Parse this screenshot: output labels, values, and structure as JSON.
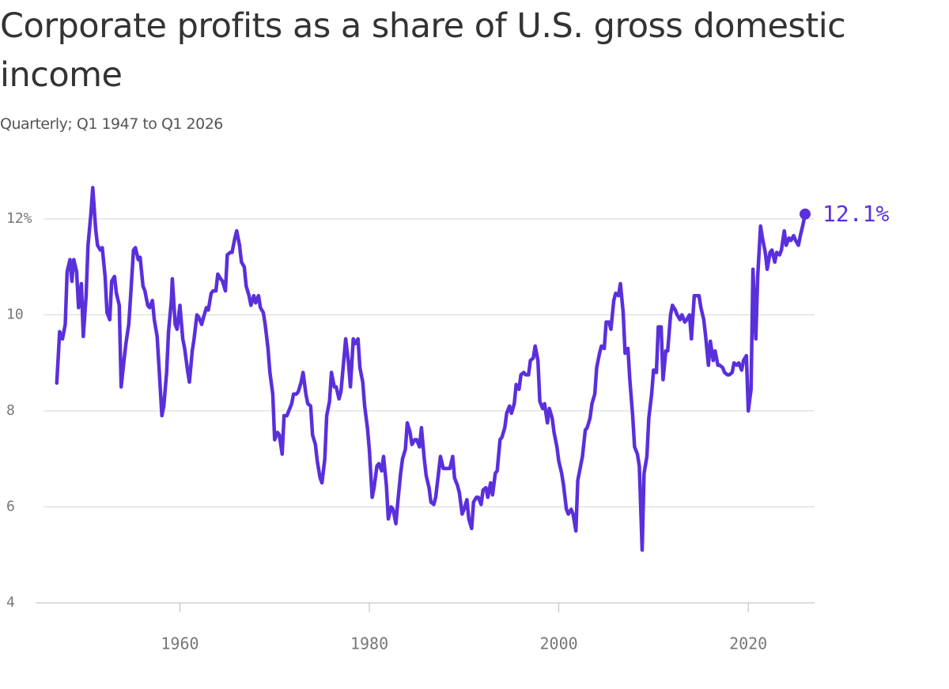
{
  "chart_data": {
    "type": "line",
    "title": "Corporate profits as a share of U.S. gross domestic income",
    "subtitle": "Quarterly; Q1 1947 to Q1 2026",
    "color": "#5a2fdc",
    "end_label": "12.1%",
    "xlim": [
      1945.6,
      2027
    ],
    "xticks": [
      1960,
      1980,
      2000,
      2020
    ],
    "ylim": [
      4,
      12.8
    ],
    "yticks": [
      4,
      6,
      8,
      10,
      {
        "value": 12,
        "label": "12%"
      }
    ],
    "grid": true,
    "x": [
      1947.0,
      1947.3,
      1947.6,
      1947.9,
      1948.1,
      1948.4,
      1948.6,
      1948.8,
      1949.1,
      1949.3,
      1949.6,
      1949.8,
      1950.1,
      1950.3,
      1950.6,
      1950.8,
      1951.1,
      1951.3,
      1951.6,
      1951.8,
      1952.1,
      1952.3,
      1952.6,
      1952.8,
      1953.1,
      1953.3,
      1953.6,
      1953.8,
      1954.1,
      1954.3,
      1954.6,
      1954.8,
      1955.1,
      1955.3,
      1955.6,
      1955.8,
      1956.1,
      1956.3,
      1956.6,
      1956.8,
      1957.1,
      1957.3,
      1957.6,
      1957.8,
      1958.1,
      1958.3,
      1958.6,
      1958.8,
      1959.1,
      1959.2,
      1959.5,
      1959.7,
      1960.0,
      1960.3,
      1960.5,
      1960.8,
      1961.0,
      1961.3,
      1961.5,
      1961.8,
      1962.0,
      1962.3,
      1962.5,
      1962.8,
      1963.0,
      1963.3,
      1963.5,
      1963.8,
      1964.0,
      1964.3,
      1964.5,
      1964.8,
      1965.0,
      1965.3,
      1965.5,
      1965.8,
      1966.0,
      1966.3,
      1966.5,
      1966.8,
      1967.0,
      1967.3,
      1967.5,
      1967.8,
      1968.0,
      1968.3,
      1968.5,
      1968.8,
      1969.0,
      1969.3,
      1969.5,
      1969.8,
      1970.0,
      1970.3,
      1970.5,
      1970.8,
      1971.0,
      1971.3,
      1971.5,
      1971.8,
      1972.0,
      1972.3,
      1972.5,
      1972.8,
      1973.0,
      1973.3,
      1973.5,
      1973.8,
      1974.0,
      1974.3,
      1974.5,
      1974.8,
      1975.0,
      1975.3,
      1975.5,
      1975.8,
      1976.0,
      1976.3,
      1976.5,
      1976.8,
      1977.0,
      1977.3,
      1977.5,
      1977.8,
      1978.0,
      1978.3,
      1978.5,
      1978.8,
      1979.0,
      1979.3,
      1979.5,
      1979.8,
      1980.0,
      1980.3,
      1980.5,
      1980.8,
      1981.0,
      1981.3,
      1981.5,
      1981.8,
      1982.0,
      1982.3,
      1982.5,
      1982.8,
      1983.0,
      1983.3,
      1983.5,
      1983.8,
      1984.0,
      1984.3,
      1984.5,
      1984.8,
      1985.0,
      1985.3,
      1985.5,
      1985.8,
      1986.0,
      1986.3,
      1986.5,
      1986.8,
      1987.0,
      1987.3,
      1987.5,
      1987.8,
      1988.0,
      1988.3,
      1988.5,
      1988.8,
      1989.0,
      1989.3,
      1989.5,
      1989.8,
      1990.0,
      1990.3,
      1990.5,
      1990.8,
      1991.0,
      1991.3,
      1991.5,
      1991.8,
      1992.0,
      1992.3,
      1992.5,
      1992.8,
      1993.0,
      1993.3,
      1993.5,
      1993.8,
      1994.0,
      1994.3,
      1994.5,
      1994.8,
      1995.0,
      1995.3,
      1995.5,
      1995.8,
      1996.0,
      1996.3,
      1996.5,
      1996.8,
      1997.0,
      1997.3,
      1997.5,
      1997.8,
      1998.0,
      1998.3,
      1998.5,
      1998.8,
      1999.0,
      1999.3,
      1999.5,
      1999.8,
      2000.0,
      2000.3,
      2000.5,
      2000.8,
      2001.0,
      2001.3,
      2001.5,
      2001.8,
      2002.0,
      2002.3,
      2002.5,
      2002.8,
      2003.0,
      2003.3,
      2003.5,
      2003.8,
      2004.0,
      2004.3,
      2004.5,
      2004.8,
      2005.0,
      2005.3,
      2005.5,
      2005.8,
      2006.0,
      2006.3,
      2006.5,
      2006.8,
      2007.0,
      2007.3,
      2007.5,
      2007.8,
      2008.0,
      2008.3,
      2008.5,
      2008.8,
      2009.0,
      2009.3,
      2009.5,
      2009.8,
      2010.0,
      2010.3,
      2010.5,
      2010.8,
      2011.0,
      2011.3,
      2011.5,
      2011.8,
      2012.0,
      2012.3,
      2012.5,
      2012.8,
      2013.0,
      2013.3,
      2013.5,
      2013.8,
      2014.0,
      2014.3,
      2014.5,
      2014.8,
      2015.0,
      2015.3,
      2015.5,
      2015.8,
      2016.0,
      2016.3,
      2016.5,
      2016.8,
      2017.0,
      2017.3,
      2017.5,
      2017.8,
      2018.0,
      2018.3,
      2018.5,
      2018.8,
      2019.0,
      2019.3,
      2019.5,
      2019.8,
      2020.0,
      2020.3,
      2020.5,
      2020.8,
      2021.0,
      2021.3,
      2021.5,
      2021.8,
      2022.0,
      2022.3,
      2022.5,
      2022.8,
      2023.0,
      2023.3,
      2023.5,
      2023.8,
      2024.0,
      2024.3,
      2024.5,
      2024.8,
      2025.0,
      2025.3,
      2025.5,
      2025.8,
      2026.0
    ],
    "values": [
      8.58,
      9.65,
      9.5,
      9.8,
      10.9,
      11.15,
      10.7,
      11.15,
      10.9,
      10.15,
      10.65,
      9.55,
      10.4,
      11.45,
      12.1,
      12.65,
      11.8,
      11.45,
      11.35,
      11.4,
      10.8,
      10.05,
      9.9,
      10.7,
      10.8,
      10.45,
      10.2,
      8.5,
      9.05,
      9.4,
      9.8,
      10.4,
      11.35,
      11.4,
      11.15,
      11.2,
      10.6,
      10.5,
      10.2,
      10.15,
      10.3,
      9.9,
      9.55,
      8.9,
      7.9,
      8.1,
      8.8,
      9.65,
      10.3,
      10.75,
      9.8,
      9.7,
      10.2,
      9.5,
      9.3,
      8.85,
      8.6,
      9.25,
      9.5,
      10.0,
      9.95,
      9.8,
      9.95,
      10.15,
      10.1,
      10.45,
      10.5,
      10.5,
      10.85,
      10.75,
      10.7,
      10.5,
      11.25,
      11.3,
      11.3,
      11.6,
      11.75,
      11.45,
      11.1,
      11.0,
      10.6,
      10.4,
      10.2,
      10.4,
      10.25,
      10.4,
      10.15,
      10.05,
      9.8,
      9.3,
      8.8,
      8.35,
      7.4,
      7.55,
      7.5,
      7.1,
      7.9,
      7.9,
      8.0,
      8.15,
      8.35,
      8.35,
      8.4,
      8.6,
      8.8,
      8.35,
      8.15,
      8.1,
      7.5,
      7.3,
      6.95,
      6.6,
      6.5,
      7.0,
      7.9,
      8.2,
      8.8,
      8.5,
      8.5,
      8.25,
      8.4,
      9.05,
      9.5,
      9.0,
      8.5,
      9.5,
      9.4,
      9.5,
      8.9,
      8.6,
      8.1,
      7.65,
      7.2,
      6.2,
      6.4,
      6.85,
      6.9,
      6.75,
      7.05,
      6.45,
      5.75,
      6.0,
      5.95,
      5.65,
      6.1,
      6.7,
      7.0,
      7.2,
      7.75,
      7.55,
      7.3,
      7.4,
      7.4,
      7.25,
      7.65,
      7.0,
      6.65,
      6.4,
      6.1,
      6.05,
      6.2,
      6.7,
      7.05,
      6.8,
      6.8,
      6.8,
      6.8,
      7.05,
      6.6,
      6.45,
      6.3,
      5.85,
      5.95,
      6.15,
      5.75,
      5.55,
      6.1,
      6.2,
      6.2,
      6.05,
      6.35,
      6.4,
      6.2,
      6.5,
      6.25,
      6.7,
      6.75,
      7.4,
      7.45,
      7.65,
      7.95,
      8.1,
      7.95,
      8.15,
      8.55,
      8.45,
      8.75,
      8.8,
      8.75,
      8.75,
      9.05,
      9.1,
      9.35,
      9.05,
      8.2,
      8.05,
      8.15,
      7.75,
      8.05,
      7.85,
      7.55,
      7.25,
      6.95,
      6.7,
      6.45,
      5.95,
      5.85,
      5.95,
      5.85,
      5.5,
      6.55,
      6.85,
      7.05,
      7.6,
      7.65,
      7.85,
      8.15,
      8.35,
      8.9,
      9.2,
      9.35,
      9.3,
      9.85,
      9.85,
      9.7,
      10.3,
      10.45,
      10.4,
      10.65,
      10.05,
      9.2,
      9.3,
      8.65,
      7.9,
      7.25,
      7.1,
      6.85,
      5.1,
      6.7,
      7.05,
      7.85,
      8.35,
      8.85,
      8.8,
      9.75,
      9.75,
      8.65,
      9.25,
      9.25,
      10.0,
      10.2,
      10.1,
      10.0,
      9.9,
      10.0,
      9.85,
      9.9,
      10.0,
      9.5,
      10.4,
      10.4,
      10.4,
      10.15,
      9.9,
      9.55,
      8.95,
      9.45,
      9.05,
      9.25,
      8.95,
      8.95,
      8.9,
      8.8,
      8.75,
      8.75,
      8.8,
      9.0,
      8.95,
      9.0,
      8.85,
      9.05,
      9.15,
      8.0,
      8.45,
      10.95,
      9.5,
      10.8,
      11.85,
      11.6,
      11.3,
      10.95,
      11.3,
      11.35,
      11.1,
      11.3,
      11.25,
      11.35,
      11.75,
      11.45,
      11.6,
      11.55,
      11.65,
      11.55,
      11.45,
      11.65,
      11.9,
      12.1
    ]
  }
}
